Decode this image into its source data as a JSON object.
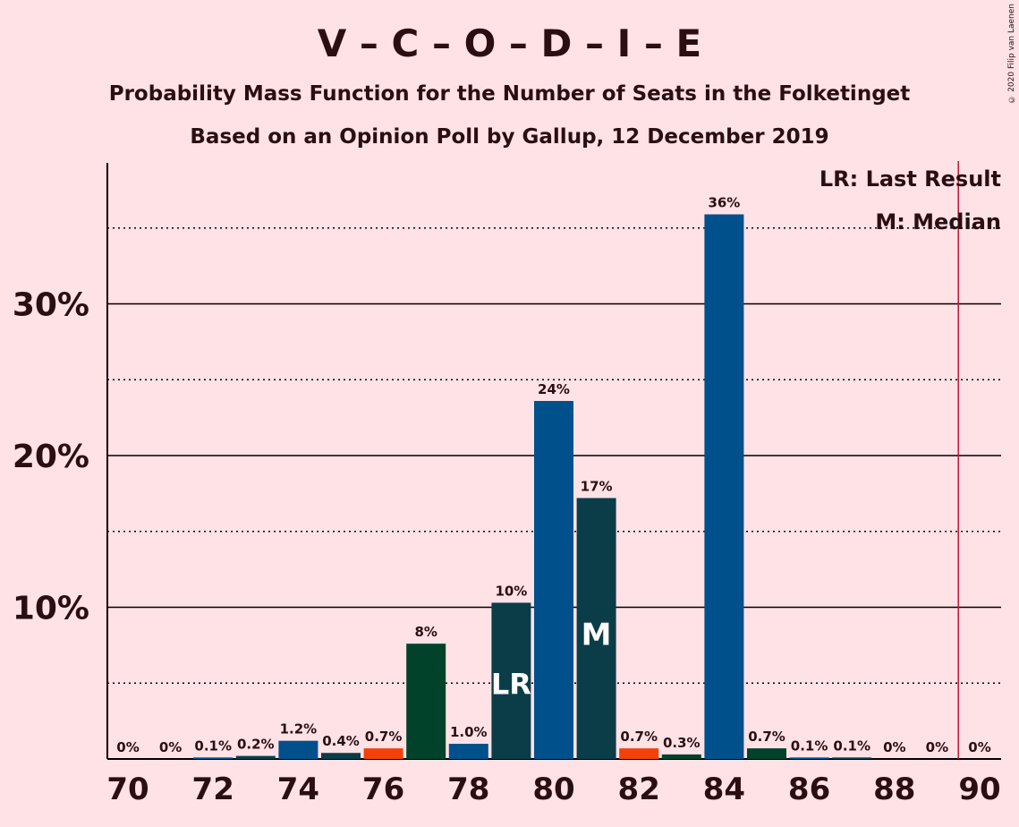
{
  "title": "V – C – O – D – I – E",
  "subtitle": "Probability Mass Function for the Number of Seats in the Folketinget",
  "subtitle2": "Based on an Opinion Poll by Gallup, 12 December 2019",
  "copyright": "© 2020 Filip van Laenen",
  "legend": {
    "last_result": "LR: Last Result",
    "median": "M: Median"
  },
  "colors": {
    "background": "#ffe2e6",
    "blue": "#00508c",
    "dark_teal": "#0a3d48",
    "dark_green": "#00422a",
    "red": "#f0420a",
    "majority_line": "#c0143c"
  },
  "chart_data": {
    "type": "bar",
    "x": [
      70,
      71,
      72,
      73,
      74,
      75,
      76,
      77,
      78,
      79,
      80,
      81,
      82,
      83,
      84,
      85,
      86,
      87,
      88,
      89,
      90
    ],
    "values": [
      0,
      0,
      0.1,
      0.2,
      1.2,
      0.4,
      0.7,
      7.6,
      1.0,
      10.3,
      23.6,
      17.2,
      0.7,
      0.3,
      35.9,
      0.7,
      0.1,
      0.1,
      0,
      0,
      0
    ],
    "value_labels": [
      "0%",
      "0%",
      "0.1%",
      "0.2%",
      "1.2%",
      "0.4%",
      "0.7%",
      "8%",
      "1.0%",
      "10%",
      "24%",
      "17%",
      "0.7%",
      "0.3%",
      "36%",
      "0.7%",
      "0.1%",
      "0.1%",
      "0%",
      "0%",
      "0%"
    ],
    "bar_colors": [
      "blue",
      "blue",
      "blue",
      "dark_teal",
      "blue",
      "dark_teal",
      "red",
      "dark_green",
      "blue",
      "dark_teal",
      "blue",
      "dark_teal",
      "red",
      "dark_green",
      "blue",
      "dark_green",
      "blue",
      "dark_teal",
      "blue",
      "blue",
      "blue"
    ],
    "x_tick_labels": [
      "70",
      "72",
      "74",
      "76",
      "78",
      "80",
      "82",
      "84",
      "86",
      "88",
      "90"
    ],
    "y_tick_labels": [
      "10%",
      "20%",
      "30%"
    ],
    "ylim": [
      0,
      39
    ],
    "major_gridlines": [
      10,
      20,
      30
    ],
    "minor_gridlines": [
      5,
      15,
      25,
      35
    ],
    "last_result": {
      "x": 79,
      "label": "LR"
    },
    "median": {
      "x": 81,
      "label": "M"
    },
    "majority_line_x": 89.5,
    "legend_position": "top-right"
  }
}
